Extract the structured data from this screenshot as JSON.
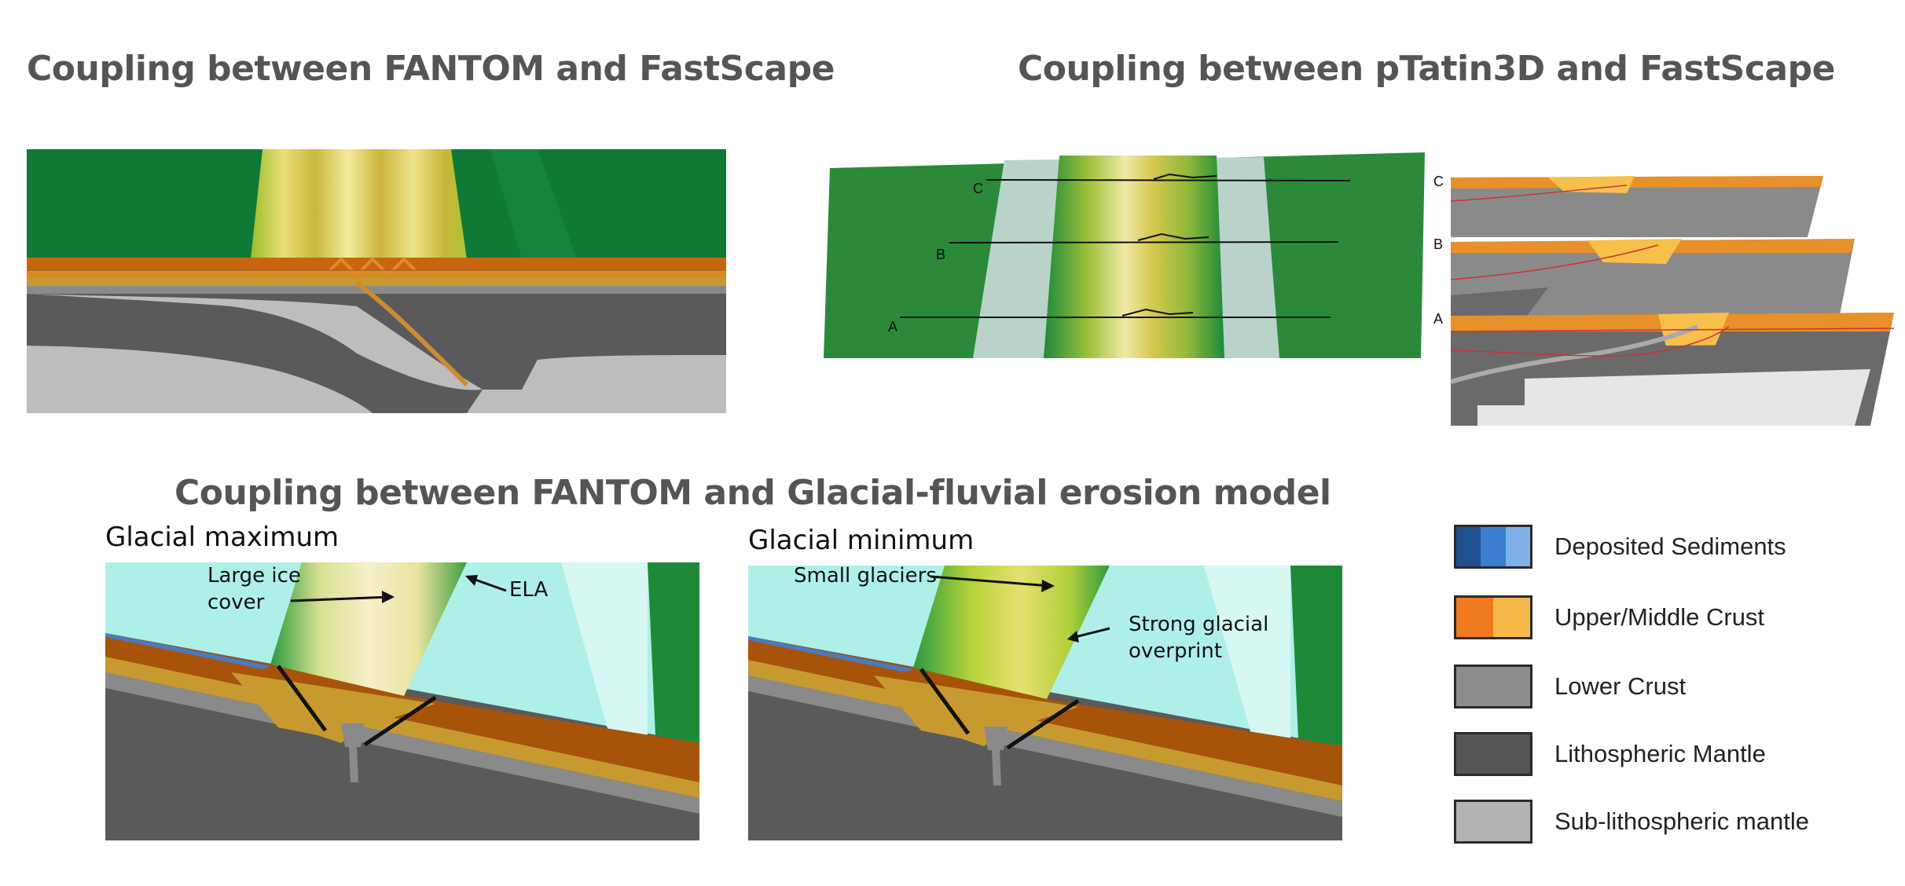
{
  "titles": {
    "fantom_fastscape": "Coupling between FANTOM and FastScape",
    "ptatin_fastscape": "Coupling between pTatin3D and FastScape",
    "fantom_glacial": "Coupling between FANTOM and Glacial-fluvial erosion model"
  },
  "panels": {
    "glacial_max": {
      "title": "Glacial maximum",
      "annotation_ice": [
        "Large ice",
        "cover"
      ],
      "annotation_ela": "ELA"
    },
    "glacial_min": {
      "title": "Glacial minimum",
      "annotation_glaciers": "Small glaciers",
      "annotation_overprint": [
        "Strong glacial",
        "overprint"
      ]
    }
  },
  "section_labels": {
    "map": [
      "C",
      "B",
      "A"
    ],
    "cross_sections": [
      "C",
      "B",
      "A"
    ]
  },
  "legend": [
    {
      "label": "Deposited Sediments",
      "colors": [
        "#1f4f8f",
        "#3a7fd0",
        "#7fb0e8"
      ]
    },
    {
      "label": "Upper/Middle Crust",
      "colors": [
        "#f07a22",
        "#f7b84a"
      ]
    },
    {
      "label": "Lower Crust",
      "colors": [
        "#8c8c8c"
      ]
    },
    {
      "label": "Lithospheric Mantle",
      "colors": [
        "#555555"
      ]
    },
    {
      "label": "Sub-lithospheric mantle",
      "colors": [
        "#b3b3b3"
      ]
    }
  ],
  "colors": {
    "forest_green": "#0f7a35",
    "mountain_yellow": "#e7d86a",
    "ice": "#aef0e8",
    "crust_orange": "#c8660f",
    "crust_brown": "#a8530a",
    "crust_tan": "#c79a2f",
    "lower_crust": "#8a8a8a",
    "mantle": "#5a5a5a",
    "sub_mantle": "#bdbdbd"
  }
}
